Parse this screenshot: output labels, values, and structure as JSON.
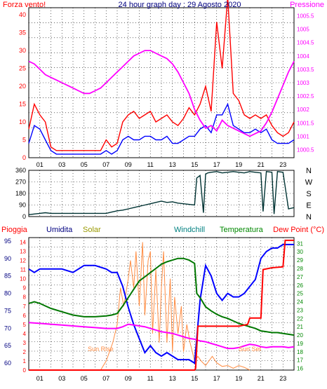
{
  "chart_data": [
    {
      "type": "line",
      "panel": "wind-pressure",
      "title": "24 hour graph day : 29 Agosto 2020",
      "left_label": "Forza vento!",
      "right_label": "Pressione",
      "x_ticks": [
        "01",
        "03",
        "05",
        "07",
        "09",
        "11",
        "13",
        "15",
        "17",
        "19",
        "21",
        "23"
      ],
      "x_range_hours": [
        0,
        24
      ],
      "y_left_ticks": [
        0,
        5,
        10,
        15,
        20,
        25,
        30,
        35,
        40
      ],
      "y_left_range": [
        0,
        42
      ],
      "y_right_ticks": [
        "1000.5",
        "1001",
        "1001.5",
        "1002",
        "1002.5",
        "1003",
        "1003.5",
        "1004",
        "1004.5",
        "1005",
        "1005.5"
      ],
      "y_right_range": [
        1000.2,
        1005.8
      ],
      "grid": true,
      "colors": {
        "gust": "#ff0000",
        "wind": "#0000ff",
        "pressure": "#ff00ff",
        "left_axis": "#ff0000",
        "right_axis": "#ff00ff",
        "title": "#000080"
      },
      "series": [
        {
          "key": "gust",
          "axis": "left",
          "x": [
            0,
            0.5,
            1,
            1.5,
            2,
            2.5,
            3,
            4,
            5,
            6,
            6.5,
            7,
            7.5,
            8,
            8.5,
            9,
            9.5,
            10,
            10.5,
            11,
            11.5,
            12,
            12.5,
            13,
            13.5,
            14,
            14.5,
            15,
            15.5,
            16,
            16.5,
            17,
            17.5,
            18,
            18.5,
            19,
            19.5,
            20,
            20.5,
            21,
            21.5,
            22,
            22.5,
            23,
            23.5,
            24
          ],
          "y": [
            8,
            15,
            12,
            10,
            3,
            2,
            2,
            2,
            2,
            2,
            2,
            5,
            3,
            4,
            10,
            12,
            13,
            11,
            12,
            13,
            10,
            11,
            12,
            10,
            9,
            11,
            14,
            12,
            15,
            20,
            13,
            38,
            25,
            45,
            18,
            16,
            12,
            11,
            12,
            11,
            12,
            9,
            7,
            6,
            7,
            10
          ]
        },
        {
          "key": "wind",
          "axis": "left",
          "x": [
            0,
            0.5,
            1,
            1.5,
            2,
            2.5,
            3,
            4,
            5,
            6,
            6.5,
            7,
            7.5,
            8,
            8.5,
            9,
            9.5,
            10,
            10.5,
            11,
            11.5,
            12,
            12.5,
            13,
            13.5,
            14,
            14.5,
            15,
            15.5,
            16,
            16.5,
            17,
            17.5,
            18,
            18.5,
            19,
            19.5,
            20,
            20.5,
            21,
            21.5,
            22,
            22.5,
            23,
            23.5,
            24
          ],
          "y": [
            4,
            9,
            8,
            5,
            2,
            1,
            1,
            1,
            1,
            1,
            1,
            2,
            1,
            2,
            5,
            6,
            5,
            5,
            6,
            6,
            5,
            5,
            6,
            4,
            4,
            5,
            6,
            6,
            8,
            9,
            7,
            12,
            12,
            15,
            9,
            8,
            7,
            7,
            8,
            7,
            8,
            5,
            4,
            4,
            4,
            5
          ]
        },
        {
          "key": "pressure",
          "axis": "right",
          "x": [
            0,
            0.5,
            1,
            1.5,
            2,
            2.5,
            3,
            3.5,
            4,
            4.5,
            5,
            5.5,
            6,
            6.5,
            7,
            7.5,
            8,
            8.5,
            9,
            9.5,
            10,
            10.5,
            11,
            11.5,
            12,
            12.5,
            13,
            13.5,
            14,
            14.5,
            15,
            15.5,
            16,
            16.5,
            17,
            17.5,
            18,
            18.5,
            19,
            19.5,
            20,
            20.5,
            21,
            21.5,
            22,
            22.5,
            23,
            23.5,
            24
          ],
          "y": [
            1003.8,
            1003.7,
            1003.5,
            1003.3,
            1003.2,
            1003.1,
            1003,
            1002.9,
            1002.8,
            1002.7,
            1002.6,
            1002.6,
            1002.7,
            1002.8,
            1003,
            1003.2,
            1003.4,
            1003.6,
            1003.8,
            1004,
            1004.1,
            1004.2,
            1004.2,
            1004.1,
            1004,
            1003.9,
            1003.7,
            1003.4,
            1003,
            1002.6,
            1002,
            1001.6,
            1001.3,
            1001.4,
            1001.2,
            1001.6,
            1001.4,
            1001.3,
            1001.2,
            1001.1,
            1001,
            1001.1,
            1001.2,
            1001.5,
            1001.9,
            1002.4,
            1002.9,
            1003.4,
            1003.8
          ]
        }
      ]
    },
    {
      "type": "line",
      "panel": "wind-direction",
      "y_ticks": [
        0,
        90,
        180,
        270,
        360
      ],
      "y_range": [
        0,
        360
      ],
      "right_labels": [
        "N",
        "W",
        "S",
        "E",
        "N"
      ],
      "x_range_hours": [
        0,
        24
      ],
      "grid": true,
      "colors": {
        "direction": "#003333"
      },
      "series": [
        {
          "key": "direction",
          "x": [
            0,
            0.5,
            1,
            1.5,
            2,
            3,
            4,
            5,
            6,
            7,
            7.5,
            8,
            8.5,
            9,
            9.5,
            10,
            10.5,
            11,
            11.5,
            12,
            12.5,
            13,
            13.5,
            14,
            14.5,
            15,
            15.2,
            15.5,
            15.8,
            16,
            16.2,
            16.5,
            17,
            17.5,
            18,
            18.5,
            19,
            19.5,
            20,
            20.5,
            21,
            21.2,
            21.5,
            22,
            22.2,
            22.5,
            23,
            23.5,
            24
          ],
          "y": [
            15,
            20,
            25,
            30,
            25,
            25,
            25,
            25,
            25,
            25,
            35,
            45,
            50,
            60,
            70,
            80,
            90,
            100,
            110,
            120,
            110,
            115,
            105,
            100,
            95,
            90,
            300,
            320,
            30,
            330,
            340,
            345,
            350,
            340,
            345,
            350,
            345,
            340,
            350,
            345,
            340,
            40,
            350,
            345,
            20,
            350,
            345,
            60,
            70
          ]
        }
      ]
    },
    {
      "type": "line",
      "panel": "rain-humidity-temperature",
      "labels": {
        "rain": "Pioggia",
        "humidity": "Umidita",
        "solar": "Solar",
        "windchill": "Windchill",
        "temperature": "Temperatura",
        "dewpoint": "Dew Point (°C)"
      },
      "annotations": [
        {
          "text": "Sun Rise",
          "hour": 6.5
        },
        {
          "text": "Sun Set",
          "hour": 20
        }
      ],
      "x_ticks": [
        "01",
        "03",
        "05",
        "07",
        "09",
        "11",
        "13",
        "15",
        "17",
        "19",
        "21",
        "23"
      ],
      "x_range_hours": [
        0,
        24
      ],
      "y_humidity_ticks": [
        60,
        65,
        70,
        75,
        80,
        85,
        90,
        95
      ],
      "y_humidity_range": [
        58,
        96
      ],
      "y_rain_ticks": [
        0,
        1,
        2,
        3,
        4,
        5,
        6,
        7,
        8,
        9,
        10,
        11,
        12,
        13,
        14
      ],
      "y_rain_range": [
        0,
        14.5
      ],
      "y_temp_ticks": [
        16,
        17,
        18,
        19,
        20,
        21,
        22,
        23,
        24,
        25,
        26,
        27,
        28,
        29,
        30,
        31
      ],
      "y_temp_range": [
        15.8,
        31.7
      ],
      "grid": true,
      "colors": {
        "rain": "#ff0000",
        "humidity": "#0000ff",
        "solar": "#ff8c42",
        "windchill": "#00aa00",
        "temperature": "#007700",
        "dewpoint": "#ff00ff",
        "rain_label": "#ff0000",
        "humidity_label": "#000080",
        "solar_label": "#999900",
        "windchill_label": "#008080",
        "temperature_label": "#008800",
        "dewpoint_label": "#ff0000"
      },
      "series": [
        {
          "key": "humidity",
          "axis": "humidity",
          "x": [
            0,
            0.5,
            1,
            2,
            3,
            4,
            5,
            6,
            7,
            7.5,
            8,
            8.5,
            9,
            9.5,
            10,
            10.5,
            11,
            11.5,
            12,
            12.5,
            13,
            13.5,
            14,
            14.5,
            15,
            15.5,
            16,
            16.5,
            17,
            17.5,
            18,
            18.5,
            19,
            19.5,
            20,
            20.5,
            21,
            21.5,
            22,
            22.5,
            23,
            23.5,
            24
          ],
          "y": [
            87,
            86,
            87,
            87,
            87,
            86,
            88,
            88,
            87,
            86,
            86,
            82,
            76,
            71,
            67,
            63,
            65,
            63,
            62,
            63,
            62,
            61,
            61,
            61,
            60,
            78,
            88,
            85,
            80,
            78,
            80,
            79,
            79,
            80,
            82,
            84,
            90,
            92,
            93,
            93,
            94,
            94,
            94
          ]
        },
        {
          "key": "dewpoint",
          "axis": "temperature",
          "x": [
            0,
            1,
            2,
            3,
            4,
            5,
            6,
            7,
            8,
            8.5,
            9,
            9.5,
            10,
            10.5,
            11,
            11.5,
            12,
            12.5,
            13,
            13.5,
            14,
            14.5,
            15,
            15.5,
            16,
            16.5,
            17,
            17.5,
            18,
            18.5,
            19,
            19.5,
            20,
            20.5,
            21,
            21.5,
            22,
            22.5,
            23,
            23.5,
            24
          ],
          "y": [
            21.5,
            21.4,
            21.3,
            21.2,
            21.1,
            21,
            20.9,
            20.8,
            20.8,
            21,
            21.3,
            21.2,
            21.1,
            21,
            20.8,
            20.6,
            20.4,
            20.3,
            20.2,
            20,
            19.8,
            19.6,
            19.5,
            19.3,
            19.2,
            19,
            18.8,
            18.6,
            18.4,
            18.4,
            18.5,
            18.7,
            18.9,
            18.8,
            18.6,
            18.5,
            18.6,
            18.6,
            18.6,
            18.5,
            18.6
          ]
        },
        {
          "key": "temperature",
          "axis": "temperature",
          "x": [
            0,
            0.5,
            1,
            1.5,
            2,
            3,
            4,
            5,
            6,
            7,
            7.5,
            8,
            8.5,
            9,
            9.5,
            10,
            10.5,
            11,
            11.5,
            12,
            12.5,
            13,
            13.5,
            14,
            14.5,
            15,
            15.2,
            15.5,
            16,
            16.5,
            17,
            17.5,
            18,
            18.5,
            19,
            19.5,
            20,
            20.5,
            21,
            21.5,
            22,
            22.5,
            23,
            23.5,
            24
          ],
          "y": [
            23.8,
            24,
            23.8,
            23.5,
            23.2,
            22.8,
            22.4,
            22.2,
            22.2,
            22.3,
            22.4,
            22.6,
            23.5,
            24.5,
            25.5,
            26.5,
            27,
            27.5,
            28,
            28.5,
            28.8,
            29,
            29.2,
            29.2,
            29,
            28.6,
            25,
            24.5,
            23.4,
            22.9,
            22.5,
            22.2,
            22,
            21.7,
            21.4,
            21.2,
            21,
            20.8,
            20.5,
            20.4,
            20.3,
            20.3,
            20.2,
            20.1,
            20
          ]
        },
        {
          "key": "rain",
          "axis": "rain",
          "x": [
            0,
            15,
            15.1,
            15.3,
            16,
            17,
            18,
            19,
            19.8,
            20,
            21,
            21.2,
            22,
            23,
            23.2,
            24
          ],
          "y": [
            0,
            0,
            0.2,
            4.8,
            4.8,
            4.8,
            4.8,
            4.8,
            5,
            5.7,
            5.7,
            11,
            11.2,
            11.3,
            14.2,
            14.2
          ]
        },
        {
          "key": "solar",
          "axis": "rain",
          "x": [
            6.5,
            7,
            7.3,
            7.6,
            8,
            8.3,
            8.6,
            9,
            9.2,
            9.5,
            9.7,
            10,
            10.3,
            10.5,
            10.8,
            11,
            11.2,
            11.5,
            11.8,
            12,
            12.2,
            12.5,
            12.8,
            13,
            13.2,
            13.5,
            13.8,
            14,
            14.3,
            14.6,
            15,
            15.3,
            15.6,
            16,
            16.3,
            16.6,
            17,
            17.5,
            18,
            18.5,
            19,
            19.5,
            20
          ],
          "y": [
            0,
            1,
            2,
            3,
            5,
            9,
            7,
            10,
            12,
            9,
            13,
            7,
            14,
            6,
            12,
            13,
            4,
            11,
            3,
            9,
            13,
            3,
            10,
            2,
            8,
            4,
            7,
            2,
            5,
            3,
            1,
            1.5,
            1,
            0.5,
            1,
            1.5,
            0.8,
            0.4,
            0.5,
            0.2,
            0.5,
            0.3,
            0
          ]
        }
      ]
    }
  ]
}
